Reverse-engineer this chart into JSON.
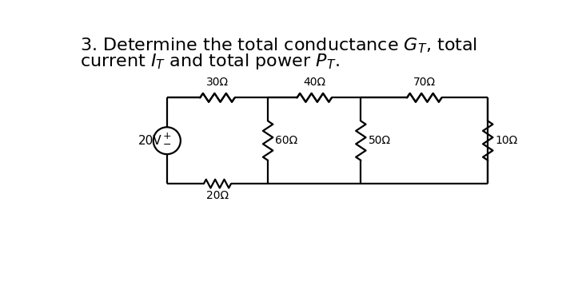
{
  "bg_color": "#ffffff",
  "text_color": "#000000",
  "circuit_color": "#000000",
  "voltage_source": "20V",
  "resistors_top": [
    "30Ω",
    "40Ω",
    "70Ω"
  ],
  "resistors_vertical": [
    "60Ω",
    "50Ω",
    "10Ω"
  ],
  "resistor_bottom": "20Ω",
  "font_size_title": 16,
  "font_size_circuit": 11,
  "title_line1": "3. Determine the total conductance $G_T$, total",
  "title_line2": "current $I_T$ and total power $P_T$."
}
